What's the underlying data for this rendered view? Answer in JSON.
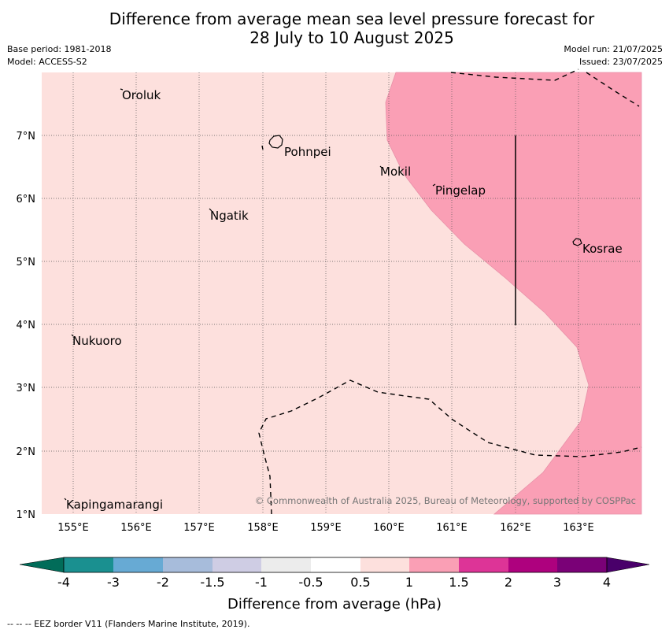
{
  "title": {
    "line1": "Difference from average mean sea level pressure forecast for",
    "line2": "28 July to 10 August 2025"
  },
  "meta_left": {
    "base_period": "Base period: 1981-2018",
    "model": "Model: ACCESS-S2"
  },
  "meta_right": {
    "model_run": "Model run: 21/07/2025",
    "issued": "Issued: 23/07/2025"
  },
  "map": {
    "lon_ticks": [
      "155°E",
      "156°E",
      "157°E",
      "158°E",
      "159°E",
      "160°E",
      "161°E",
      "162°E",
      "163°E"
    ],
    "lat_ticks": [
      "1°N",
      "2°N",
      "3°N",
      "4°N",
      "5°N",
      "6°N",
      "7°N"
    ],
    "places": [
      {
        "name": "Oroluk"
      },
      {
        "name": "Pohnpei"
      },
      {
        "name": "Mokil"
      },
      {
        "name": "Pingelap"
      },
      {
        "name": "Ngatik"
      },
      {
        "name": "Kosrae"
      },
      {
        "name": "Nukuoro"
      },
      {
        "name": "Kapingamarangi"
      }
    ],
    "copyright": "© Commonwealth of Australia 2025, Bureau of Meteorology, supported by COSPPac",
    "colors": {
      "range_0_5_to_1": "#fde0dd",
      "range_1_to_1_5": "#fa9fb5"
    }
  },
  "colorbar": {
    "label": "Difference from average (hPa)",
    "ticks": [
      "-4",
      "-3",
      "-2",
      "-1.5",
      "-1",
      "-0.5",
      "0.5",
      "1",
      "1.5",
      "2",
      "3",
      "4"
    ],
    "colors": [
      "#1a9090",
      "#67aad4",
      "#a7bcdb",
      "#cfcde4",
      "#ececec",
      "#ffffff",
      "#fde0dd",
      "#fa9fb5",
      "#dd3497",
      "#ae017e",
      "#7a0177"
    ],
    "under_color": "#016c59",
    "over_color": "#49006a"
  },
  "footer": "--  --  -- EEZ border V11 (Flanders Marine Institute, 2019)."
}
